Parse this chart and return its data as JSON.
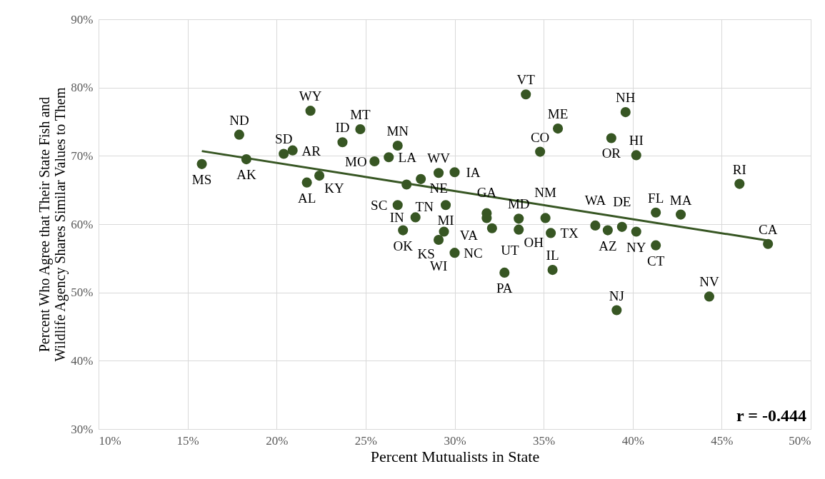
{
  "chart_data": {
    "type": "scatter",
    "xlabel": "Percent  Mutualists in State",
    "ylabel": "Percent Who Agree that Their State Fish and Wildlife Agency Shares Similar Values to Them",
    "xlim": [
      10,
      50
    ],
    "xticks": [
      {
        "value": 10,
        "label": "10%"
      },
      {
        "value": 15,
        "label": "15%"
      },
      {
        "value": 20,
        "label": "20%"
      },
      {
        "value": 25,
        "label": "25%"
      },
      {
        "value": 30,
        "label": "30%"
      },
      {
        "value": 35,
        "label": "35%"
      },
      {
        "value": 40,
        "label": "40%"
      },
      {
        "value": 45,
        "label": "45%"
      },
      {
        "value": 50,
        "label": "50%"
      }
    ],
    "ylim": [
      30,
      90
    ],
    "yticks": [
      {
        "value": 30,
        "label": "30%"
      },
      {
        "value": 40,
        "label": "40%"
      },
      {
        "value": 50,
        "label": "50%"
      },
      {
        "value": 60,
        "label": "60%"
      },
      {
        "value": 70,
        "label": "70%"
      },
      {
        "value": 80,
        "label": "80%"
      },
      {
        "value": 90,
        "label": "90%"
      }
    ],
    "grid": true,
    "series": [
      {
        "marker": "circle",
        "color": "#375623",
        "x": [
          15.8,
          17.9,
          18.3,
          20.4,
          20.9,
          21.9,
          21.7,
          22.4,
          23.7,
          24.7,
          25.5,
          26.3,
          26.8,
          27.3,
          28.1,
          29.1,
          30.0,
          26.8,
          27.8,
          27.1,
          29.5,
          29.4,
          29.1,
          30.0,
          31.8,
          31.8,
          32.1,
          33.6,
          33.6,
          32.8,
          34.0,
          35.8,
          34.8,
          35.1,
          35.5,
          35.4,
          37.9,
          39.4,
          40.2,
          38.6,
          38.8,
          39.6,
          40.2,
          41.3,
          42.7,
          41.3,
          46.0,
          47.6,
          44.3,
          39.1
        ],
        "values": [
          68.8,
          73.1,
          69.5,
          70.3,
          70.8,
          76.6,
          66.1,
          67.1,
          72.0,
          73.9,
          69.2,
          69.8,
          71.5,
          65.8,
          66.6,
          67.5,
          67.6,
          62.8,
          61.0,
          59.1,
          62.8,
          58.9,
          57.7,
          55.8,
          61.6,
          60.9,
          59.4,
          60.8,
          59.2,
          52.9,
          79.0,
          74.0,
          70.6,
          60.9,
          53.3,
          58.7,
          59.8,
          59.6,
          58.9,
          59.1,
          72.6,
          76.4,
          70.1,
          61.7,
          61.4,
          56.9,
          65.9,
          57.1,
          49.4,
          47.4
        ]
      },
      {
        "type": "line",
        "color": "#375623",
        "x": [
          15.8,
          47.6
        ],
        "values": [
          70.7,
          57.6
        ]
      }
    ],
    "annotations": [
      {
        "text": "MS",
        "x": 15.8,
        "y": 68.8
      },
      {
        "text": "ND",
        "x": 17.9,
        "y": 73.1
      },
      {
        "text": "AK",
        "x": 18.3,
        "y": 69.5
      },
      {
        "text": "SD",
        "x": 20.4,
        "y": 70.3
      },
      {
        "text": "AR",
        "x": 20.9,
        "y": 70.8
      },
      {
        "text": "WY",
        "x": 21.9,
        "y": 76.6
      },
      {
        "text": "AL",
        "x": 21.7,
        "y": 66.1
      },
      {
        "text": "KY",
        "x": 22.4,
        "y": 67.1
      },
      {
        "text": "ID",
        "x": 23.7,
        "y": 72.0
      },
      {
        "text": "MT",
        "x": 24.7,
        "y": 73.9
      },
      {
        "text": "MO",
        "x": 25.5,
        "y": 69.2
      },
      {
        "text": "LA",
        "x": 26.3,
        "y": 69.8
      },
      {
        "text": "MN",
        "x": 26.8,
        "y": 71.5
      },
      {
        "text": "TN",
        "x": 27.3,
        "y": 65.8
      },
      {
        "text": "WV",
        "x": 28.1,
        "y": 66.6
      },
      {
        "text": "NE",
        "x": 29.1,
        "y": 67.5
      },
      {
        "text": "IA",
        "x": 30.0,
        "y": 67.6
      },
      {
        "text": "SC",
        "x": 26.8,
        "y": 62.8
      },
      {
        "text": "IN",
        "x": 27.8,
        "y": 61.0
      },
      {
        "text": "OK",
        "x": 27.1,
        "y": 59.1
      },
      {
        "text": "MI",
        "x": 29.5,
        "y": 62.8
      },
      {
        "text": "KS",
        "x": 29.4,
        "y": 58.9
      },
      {
        "text": "WI",
        "x": 29.1,
        "y": 57.7
      },
      {
        "text": "NC",
        "x": 30.0,
        "y": 55.8
      },
      {
        "text": "VA",
        "x": 31.8,
        "y": 61.6
      },
      {
        "text": "GA",
        "x": 31.8,
        "y": 60.9
      },
      {
        "text": "UT",
        "x": 32.1,
        "y": 59.4
      },
      {
        "text": "MD",
        "x": 33.6,
        "y": 60.8
      },
      {
        "text": "OH",
        "x": 33.6,
        "y": 59.2
      },
      {
        "text": "PA",
        "x": 32.8,
        "y": 52.9
      },
      {
        "text": "VT",
        "x": 34.0,
        "y": 79.0
      },
      {
        "text": "ME",
        "x": 35.8,
        "y": 74.0
      },
      {
        "text": "CO",
        "x": 34.8,
        "y": 70.6
      },
      {
        "text": "NM",
        "x": 35.1,
        "y": 60.9
      },
      {
        "text": "IL",
        "x": 35.5,
        "y": 53.3
      },
      {
        "text": "TX",
        "x": 35.4,
        "y": 58.7
      },
      {
        "text": "WA",
        "x": 37.9,
        "y": 59.8
      },
      {
        "text": "DE",
        "x": 39.4,
        "y": 59.6
      },
      {
        "text": "NY",
        "x": 40.2,
        "y": 58.9
      },
      {
        "text": "AZ",
        "x": 38.6,
        "y": 59.1
      },
      {
        "text": "OR",
        "x": 38.8,
        "y": 72.6
      },
      {
        "text": "NH",
        "x": 39.6,
        "y": 76.4
      },
      {
        "text": "HI",
        "x": 40.2,
        "y": 70.1
      },
      {
        "text": "FL",
        "x": 41.3,
        "y": 61.7
      },
      {
        "text": "MA",
        "x": 42.7,
        "y": 61.4
      },
      {
        "text": "CT",
        "x": 41.3,
        "y": 56.9
      },
      {
        "text": "RI",
        "x": 46.0,
        "y": 65.9
      },
      {
        "text": "CA",
        "x": 47.6,
        "y": 57.1
      },
      {
        "text": "NV",
        "x": 44.3,
        "y": 49.4
      },
      {
        "text": "NJ",
        "x": 39.1,
        "y": 47.4
      },
      "r = -0.444"
    ]
  }
}
